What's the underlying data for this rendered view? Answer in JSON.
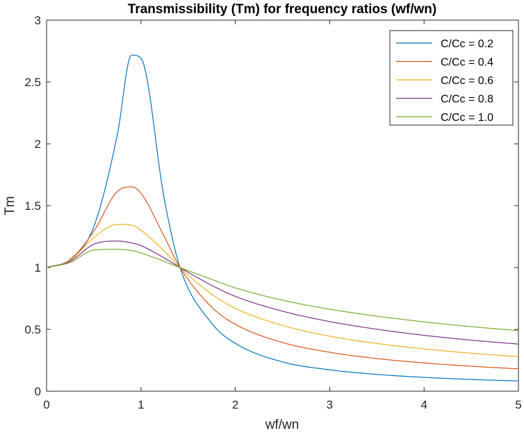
{
  "chart_data": {
    "type": "line",
    "title": "Transmissibility (Tm) for frequency ratios (wf/wn)",
    "xlabel": "wf/wn",
    "ylabel": "Tm",
    "xlim": [
      0,
      5
    ],
    "ylim": [
      0,
      3
    ],
    "xticks": [
      0,
      1,
      2,
      3,
      4,
      5
    ],
    "yticks": [
      0,
      0.5,
      1,
      1.5,
      2,
      2.5,
      3
    ],
    "xtick_labels": [
      "0",
      "1",
      "2",
      "3",
      "4",
      "5"
    ],
    "ytick_labels": [
      "0",
      "0.5",
      "1",
      "1.5",
      "2",
      "2.5",
      "3"
    ],
    "grid": false,
    "legend_position": "top-right",
    "x": [
      0,
      0.25,
      0.5,
      0.75,
      0.9,
      1.0,
      1.25,
      1.4142,
      1.75,
      2.0,
      2.5,
      3.0,
      3.5,
      4.0,
      4.5,
      5.0
    ],
    "series": [
      {
        "name": "C/Cc = 0.2",
        "color": "#0072BD",
        "values": [
          1.0,
          1.066,
          1.329,
          2.074,
          2.718,
          2.693,
          1.543,
          1.0,
          0.549,
          0.387,
          0.237,
          0.173,
          0.136,
          0.112,
          0.095,
          0.083
        ]
      },
      {
        "name": "C/Cc = 0.4",
        "color": "#D95319",
        "values": [
          1.0,
          1.063,
          1.293,
          1.615,
          1.652,
          1.601,
          1.246,
          1.0,
          0.68,
          0.541,
          0.394,
          0.315,
          0.264,
          0.229,
          0.202,
          0.181
        ]
      },
      {
        "name": "C/Cc = 0.6",
        "color": "#EDB120",
        "values": [
          1.0,
          1.058,
          1.242,
          1.349,
          1.343,
          1.302,
          1.13,
          1.0,
          0.785,
          0.67,
          0.532,
          0.445,
          0.386,
          0.342,
          0.307,
          0.279
        ]
      },
      {
        "name": "C/Cc = 0.8",
        "color": "#7E2F8E",
        "values": [
          1.0,
          1.05,
          1.188,
          1.214,
          1.199,
          1.177,
          1.076,
          1.0,
          0.856,
          0.767,
          0.647,
          0.563,
          0.501,
          0.452,
          0.413,
          0.381
        ]
      },
      {
        "name": "C/Cc = 1.0",
        "color": "#77AC30",
        "values": [
          1.0,
          1.041,
          1.141,
          1.147,
          1.138,
          1.118,
          1.048,
          1.0,
          0.904,
          0.836,
          0.736,
          0.663,
          0.607,
          0.561,
          0.522,
          0.49
        ]
      }
    ]
  }
}
